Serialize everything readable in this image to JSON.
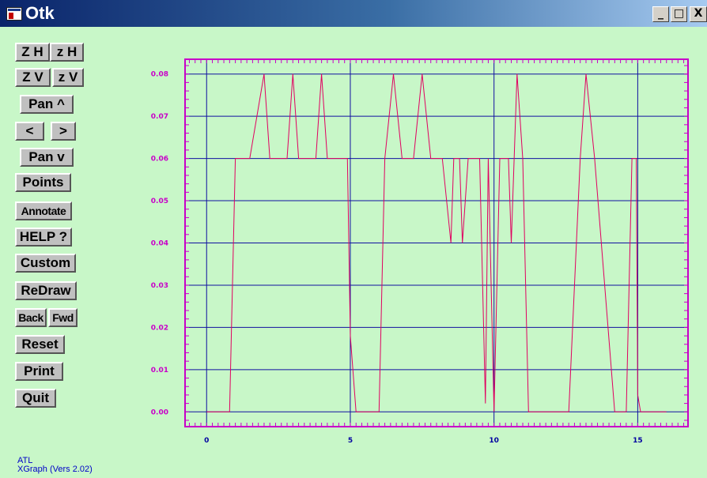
{
  "window": {
    "title": "Otk",
    "min_label": "_",
    "max_label": "□",
    "close_label": "X"
  },
  "buttons": {
    "zoom_in_h": "Z H",
    "zoom_out_h": "z H",
    "zoom_in_v": "Z V",
    "zoom_out_v": "z V",
    "pan_up": "Pan ^",
    "pan_left": "<",
    "pan_right": ">",
    "pan_down": "Pan v",
    "points": "Points",
    "annotate": "Annotate",
    "help": "HELP ?",
    "custom": "Custom",
    "redraw": "ReDraw",
    "back": "Back",
    "fwd": "Fwd",
    "reset": "Reset",
    "print": "Print",
    "quit": "Quit"
  },
  "footer": {
    "line1": "ATL",
    "line2": "XGraph (Vers 2.02)"
  },
  "colors": {
    "background": "#c8f7c8",
    "plot_border": "#c800c8",
    "grid": "#1010a0",
    "series": "#e00060",
    "tick_labels": "#c800c8",
    "x_tick_labels": "#0000a0"
  },
  "chart_data": {
    "type": "line",
    "title": "",
    "xlabel": "",
    "ylabel": "",
    "xlim": [
      -0.75,
      16.75
    ],
    "ylim": [
      -0.0035,
      0.0835
    ],
    "x_ticks": [
      0,
      5,
      10,
      15
    ],
    "x_tick_labels": [
      "0",
      "5",
      "10",
      "15"
    ],
    "y_ticks": [
      0.0,
      0.01,
      0.02,
      0.03,
      0.04,
      0.05,
      0.06,
      0.07,
      0.08
    ],
    "y_tick_labels": [
      "0.00",
      "0.01",
      "0.02",
      "0.03",
      "0.04",
      "0.05",
      "0.06",
      "0.07",
      "0.08"
    ],
    "grid": true,
    "series": [
      {
        "x": [
          0,
          0.8,
          1,
          1.5,
          2,
          2.2,
          2.8,
          3,
          3.2,
          3.8,
          4,
          4.2,
          4.9,
          5,
          5.2,
          6,
          6.2,
          6.5,
          6.8,
          7.2,
          7.5,
          7.8,
          8.2,
          8.5,
          8.6,
          8.8,
          8.9,
          9.1,
          9.5,
          9.7,
          9.8,
          10,
          10.2,
          10.5,
          10.6,
          10.8,
          11,
          11.2,
          12.6,
          13,
          13.2,
          13.5,
          14.2,
          14.6,
          14.8,
          14.95,
          15,
          15.1,
          16
        ],
        "y": [
          0,
          0,
          0.06,
          0.06,
          0.08,
          0.06,
          0.06,
          0.08,
          0.06,
          0.06,
          0.08,
          0.06,
          0.06,
          0.018,
          0,
          0,
          0.06,
          0.08,
          0.06,
          0.06,
          0.08,
          0.06,
          0.06,
          0.04,
          0.06,
          0.06,
          0.04,
          0.06,
          0.06,
          0.002,
          0.06,
          0,
          0.06,
          0.06,
          0.04,
          0.08,
          0.06,
          0,
          0,
          0.06,
          0.08,
          0.06,
          0,
          0,
          0.06,
          0.06,
          0.004,
          0,
          0
        ]
      }
    ]
  }
}
